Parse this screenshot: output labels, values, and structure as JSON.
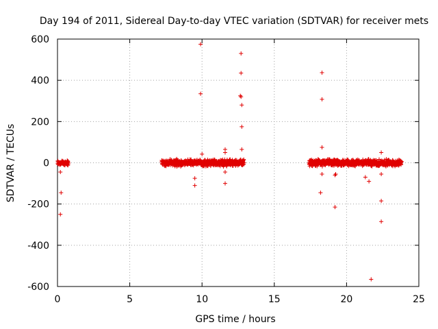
{
  "chart_data": {
    "type": "scatter",
    "title": "Day 194 of 2011, Sidereal Day-to-day VTEC variation (SDTVAR) for receiver mets",
    "xlabel": "GPS time / hours",
    "ylabel": "SDTVAR / TECUs",
    "xlim": [
      0,
      25
    ],
    "ylim": [
      -600,
      600
    ],
    "xticks": [
      0,
      5,
      10,
      15,
      20,
      25
    ],
    "yticks": [
      -600,
      -400,
      -200,
      0,
      200,
      400,
      600
    ],
    "xtick_labels": [
      "0",
      "5",
      "10",
      "15",
      "20",
      "25"
    ],
    "ytick_labels": [
      "-600",
      "-400",
      "-200",
      "0",
      "200",
      "400",
      "600"
    ],
    "grid": true,
    "marker": "+",
    "series_color": "#e00000",
    "dense_bands": [
      {
        "x_start": 0.0,
        "x_end": 0.75,
        "y_low": -12,
        "y_high": 12
      },
      {
        "x_start": 7.2,
        "x_end": 12.9,
        "y_low": -15,
        "y_high": 15
      },
      {
        "x_start": 17.4,
        "x_end": 23.8,
        "y_low": -15,
        "y_high": 15
      }
    ],
    "outliers": [
      {
        "x": 0.2,
        "y": -45
      },
      {
        "x": 0.25,
        "y": -145
      },
      {
        "x": 0.2,
        "y": -250
      },
      {
        "x": 9.5,
        "y": -75
      },
      {
        "x": 9.5,
        "y": -110
      },
      {
        "x": 9.9,
        "y": 575
      },
      {
        "x": 9.9,
        "y": 335
      },
      {
        "x": 10.0,
        "y": 42
      },
      {
        "x": 11.6,
        "y": 65
      },
      {
        "x": 11.6,
        "y": 50
      },
      {
        "x": 11.6,
        "y": -45
      },
      {
        "x": 11.6,
        "y": -100
      },
      {
        "x": 12.7,
        "y": 530
      },
      {
        "x": 12.7,
        "y": 435
      },
      {
        "x": 12.65,
        "y": 325
      },
      {
        "x": 12.7,
        "y": 320
      },
      {
        "x": 12.75,
        "y": 280
      },
      {
        "x": 12.75,
        "y": 175
      },
      {
        "x": 12.75,
        "y": 65
      },
      {
        "x": 18.3,
        "y": 437
      },
      {
        "x": 18.3,
        "y": 308
      },
      {
        "x": 18.3,
        "y": 75
      },
      {
        "x": 18.3,
        "y": -55
      },
      {
        "x": 18.2,
        "y": -145
      },
      {
        "x": 19.2,
        "y": -60
      },
      {
        "x": 19.25,
        "y": -55
      },
      {
        "x": 19.2,
        "y": -215
      },
      {
        "x": 21.3,
        "y": -70
      },
      {
        "x": 21.55,
        "y": -90
      },
      {
        "x": 21.7,
        "y": -565
      },
      {
        "x": 22.4,
        "y": 50
      },
      {
        "x": 22.4,
        "y": -55
      },
      {
        "x": 22.4,
        "y": -185
      },
      {
        "x": 22.4,
        "y": -285
      }
    ]
  }
}
